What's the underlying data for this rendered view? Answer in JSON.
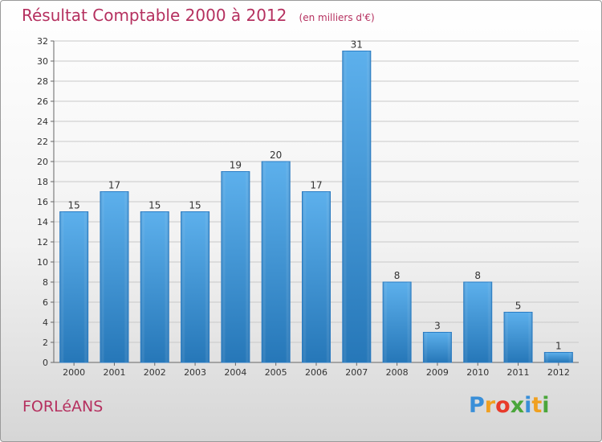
{
  "header": {
    "title": "Résultat Comptable 2000 à 2012",
    "unit": "(en milliers d'€)"
  },
  "footer": {
    "commune": "FORLéANS",
    "brand_letters": [
      "P",
      "r",
      "o",
      "x",
      "i",
      "t",
      "i"
    ],
    "brand_colors": [
      "#3a8fd8",
      "#f0a020",
      "#e83a2a",
      "#4aa63a",
      "#3a8fd8",
      "#f0a020",
      "#4aa63a"
    ]
  },
  "chart_data": {
    "type": "bar",
    "title": "Résultat Comptable 2000 à 2012",
    "ylabel": "",
    "xlabel": "",
    "categories": [
      "2000",
      "2001",
      "2002",
      "2003",
      "2004",
      "2005",
      "2006",
      "2007",
      "2008",
      "2009",
      "2010",
      "2011",
      "2012"
    ],
    "values": [
      15,
      17,
      15,
      15,
      19,
      20,
      17,
      31,
      8,
      3,
      8,
      5,
      1
    ],
    "ylim": [
      0,
      32
    ],
    "yticks": [
      0,
      2,
      4,
      6,
      8,
      10,
      12,
      14,
      16,
      18,
      20,
      22,
      24,
      26,
      28,
      30,
      32
    ],
    "grid": true,
    "bar_color": "#2f8ad8"
  }
}
